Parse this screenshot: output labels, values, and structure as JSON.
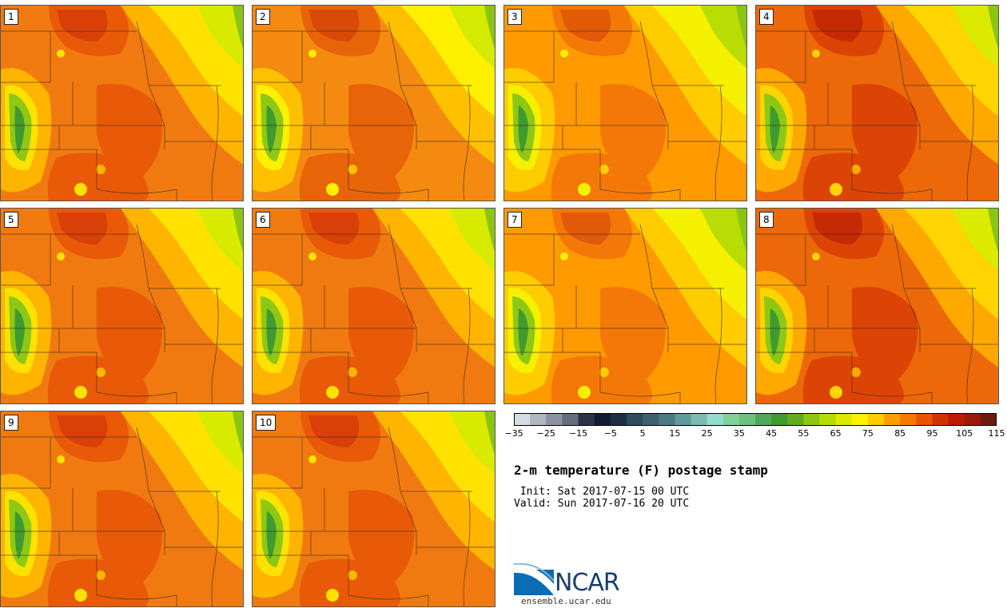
{
  "panels": [
    {
      "label": "1",
      "mood": "hot"
    },
    {
      "label": "2",
      "mood": "mild"
    },
    {
      "label": "3",
      "mood": "cool"
    },
    {
      "label": "4",
      "mood": "veryhot"
    },
    {
      "label": "5",
      "mood": "hot"
    },
    {
      "label": "6",
      "mood": "hot"
    },
    {
      "label": "7",
      "mood": "cool"
    },
    {
      "label": "8",
      "mood": "veryhot"
    },
    {
      "label": "9",
      "mood": "hot"
    },
    {
      "label": "10",
      "mood": "hot"
    }
  ],
  "colorbar": {
    "colors": [
      "#d6dae2",
      "#b2b6c0",
      "#8c93a0",
      "#666d7c",
      "#2a3348",
      "#111c33",
      "#1e2e44",
      "#2f4b5e",
      "#3e5f6e",
      "#4a7a84",
      "#5f9a9c",
      "#7bbbb4",
      "#95dcd0",
      "#82d09b",
      "#6ec07e",
      "#52a85a",
      "#3f9a30",
      "#63ac20",
      "#8ec814",
      "#b5dc04",
      "#dcea00",
      "#fff200",
      "#ffcc00",
      "#ff9e00",
      "#f77800",
      "#ea5200",
      "#d23200",
      "#ba1c00",
      "#9c1a0a",
      "#6e1a12"
    ],
    "tick_labels": [
      "−35",
      "−25",
      "−15",
      "−5",
      "5",
      "15",
      "25",
      "35",
      "45",
      "55",
      "65",
      "75",
      "85",
      "95",
      "105",
      "115"
    ]
  },
  "title": "2-m temperature (F) postage stamp",
  "init": " Init: Sat 2017-07-15 00 UTC",
  "valid": "Valid: Sun 2017-07-16 20 UTC",
  "logo": {
    "text": "NCAR",
    "site": "ensemble.ucar.edu"
  }
}
